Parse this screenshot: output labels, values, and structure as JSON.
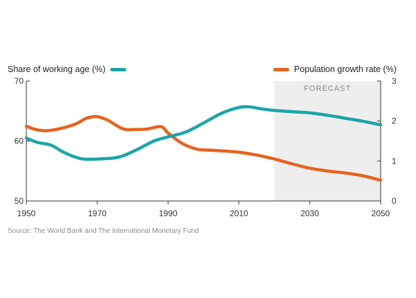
{
  "chart_data": {
    "type": "line",
    "title": "",
    "source": "Source: The World Bank and The International Monetary Fund",
    "x_ticks": [
      "1950",
      "1970",
      "1990",
      "2010",
      "2030",
      "2050"
    ],
    "xlim": [
      1950,
      2050
    ],
    "forecast": {
      "label": "FORECAST",
      "from": 2020,
      "to": 2050
    },
    "left_axis": {
      "ylim": [
        50,
        70
      ],
      "ticks": [
        "50",
        "60",
        "70"
      ]
    },
    "right_axis": {
      "ylim": [
        0,
        3
      ],
      "ticks": [
        "0",
        "1",
        "2",
        "3"
      ]
    },
    "series": [
      {
        "name": "Share of working age (%)",
        "color": "#1aa6a8",
        "axis": "left",
        "points": [
          [
            1950,
            60.5
          ],
          [
            1953,
            59.8
          ],
          [
            1957,
            59.3
          ],
          [
            1960,
            58.3
          ],
          [
            1963,
            57.5
          ],
          [
            1966,
            57.0
          ],
          [
            1970,
            57.0
          ],
          [
            1975,
            57.2
          ],
          [
            1978,
            57.7
          ],
          [
            1982,
            58.8
          ],
          [
            1986,
            60.0
          ],
          [
            1990,
            60.7
          ],
          [
            1995,
            61.5
          ],
          [
            2000,
            63.0
          ],
          [
            2005,
            64.6
          ],
          [
            2010,
            65.6
          ],
          [
            2013,
            65.7
          ],
          [
            2016,
            65.4
          ],
          [
            2020,
            65.1
          ],
          [
            2025,
            64.9
          ],
          [
            2030,
            64.7
          ],
          [
            2035,
            64.3
          ],
          [
            2040,
            63.8
          ],
          [
            2045,
            63.3
          ],
          [
            2050,
            62.7
          ]
        ]
      },
      {
        "name": "Population growth rate (%)",
        "color": "#e8621e",
        "axis": "right",
        "points": [
          [
            1950,
            1.87
          ],
          [
            1953,
            1.78
          ],
          [
            1956,
            1.76
          ],
          [
            1960,
            1.82
          ],
          [
            1964,
            1.93
          ],
          [
            1967,
            2.07
          ],
          [
            1970,
            2.11
          ],
          [
            1973,
            2.02
          ],
          [
            1976,
            1.86
          ],
          [
            1978,
            1.79
          ],
          [
            1981,
            1.79
          ],
          [
            1984,
            1.8
          ],
          [
            1988,
            1.86
          ],
          [
            1990,
            1.7
          ],
          [
            1994,
            1.44
          ],
          [
            1998,
            1.3
          ],
          [
            2002,
            1.27
          ],
          [
            2006,
            1.25
          ],
          [
            2010,
            1.22
          ],
          [
            2015,
            1.15
          ],
          [
            2020,
            1.05
          ],
          [
            2025,
            0.93
          ],
          [
            2030,
            0.82
          ],
          [
            2035,
            0.75
          ],
          [
            2040,
            0.7
          ],
          [
            2045,
            0.63
          ],
          [
            2050,
            0.52
          ]
        ]
      }
    ]
  }
}
